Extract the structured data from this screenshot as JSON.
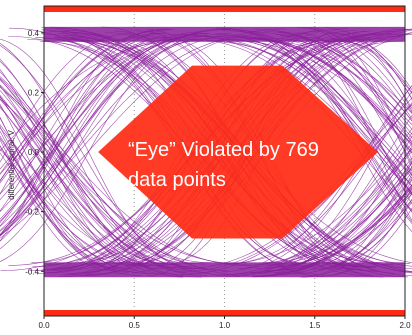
{
  "chart_data": {
    "type": "eye-diagram",
    "title": "",
    "xlabel": "",
    "ylabel": "differential signal, V",
    "xlim": [
      0.0,
      2.0
    ],
    "ylim": [
      -0.55,
      0.49
    ],
    "x_ticks": [
      "0.0",
      "0.5",
      "1.0",
      "1.5",
      "2.0"
    ],
    "y_ticks": [
      "0.4",
      "0.2",
      "0.0",
      "-0.2",
      "-0.4"
    ],
    "grid": "vertical dotted",
    "mask_limits": {
      "upper": 0.48,
      "lower": -0.54
    },
    "eye_mask": {
      "polygon_x": [
        0.3,
        0.82,
        1.32,
        1.85,
        1.32,
        0.82
      ],
      "polygon_y": [
        0.0,
        0.29,
        0.29,
        0.0,
        -0.29,
        -0.29
      ]
    },
    "signal_rails": {
      "high": [
        0.37,
        0.42
      ],
      "low": [
        -0.37,
        -0.42
      ]
    },
    "annotation": {
      "line1": "“Eye” Violated by 769",
      "line2": "data points"
    },
    "colors": {
      "traces": "#8a1f9a",
      "mask": "#ff2a14",
      "limit_lines": "#ff2a14",
      "annotation_text": "#ffffff",
      "axis": "#222222",
      "grid": "#9a9a9a"
    }
  }
}
